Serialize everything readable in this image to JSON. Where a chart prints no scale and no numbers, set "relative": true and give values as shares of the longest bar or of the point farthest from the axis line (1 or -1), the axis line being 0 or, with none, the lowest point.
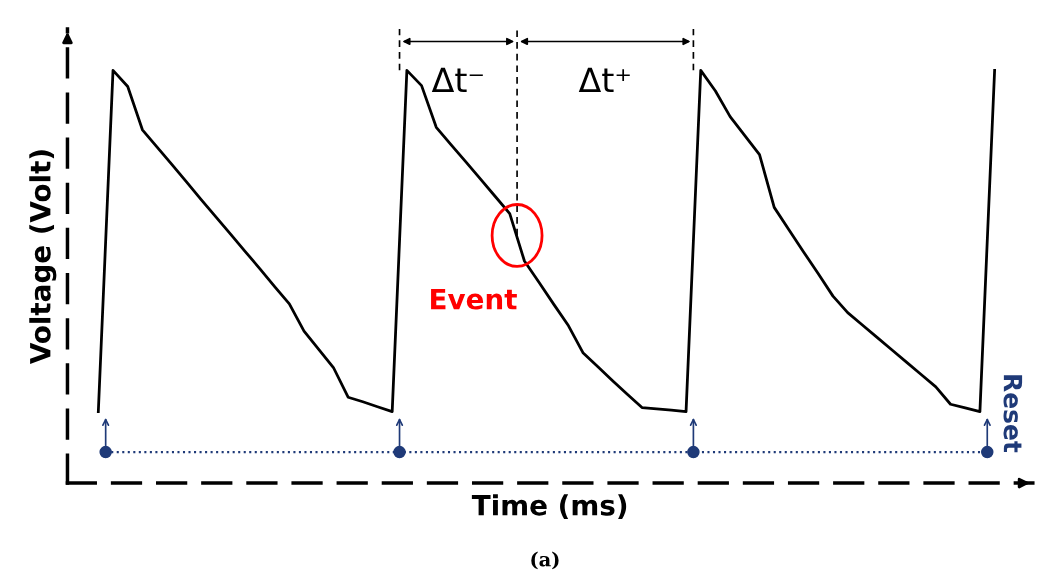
{
  "chart_data": {
    "type": "line",
    "relative": true,
    "xlabel": "Time (ms)",
    "ylabel": "Voltage (Volt)",
    "legend": false,
    "tick_labels": false,
    "categories": [
      null,
      null,
      null,
      null,
      null,
      null,
      null,
      null,
      null,
      null,
      null,
      null,
      null,
      null,
      null,
      null,
      null,
      null,
      null,
      null,
      null,
      null,
      null,
      null,
      null,
      null,
      null,
      null,
      null,
      null,
      null,
      null,
      null,
      null,
      null,
      null,
      null,
      null,
      null,
      null,
      null,
      null,
      null,
      null,
      null,
      null,
      null,
      null,
      null,
      null,
      null,
      null,
      null,
      null,
      null,
      null,
      null,
      null,
      null,
      null,
      null,
      null
    ],
    "series": [
      {
        "color": "#000000",
        "values": [
          0.173,
          1,
          0.961,
          0.856,
          0.814,
          0.772,
          0.73,
          0.687,
          0.645,
          0.603,
          0.561,
          0.519,
          0.476,
          0.434,
          0.368,
          0.324,
          0.28,
          0.208,
          0.197,
          0.185,
          0.173,
          1,
          0.963,
          0.862,
          0.82,
          0.779,
          0.737,
          0.695,
          0.653,
          0.538,
          0.486,
          0.433,
          0.381,
          0.315,
          0.282,
          0.248,
          0.215,
          0.183,
          0.18,
          0.177,
          0.173,
          1,
          0.95,
          0.888,
          0.842,
          0.796,
          0.668,
          0.614,
          0.56,
          0.507,
          0.453,
          0.413,
          0.383,
          0.353,
          0.323,
          0.293,
          0.263,
          0.233,
          0.191,
          0.182,
          0.173,
          1
        ]
      }
    ],
    "ref_lines": [
      {
        "axis": "y",
        "value": 0.075,
        "line_style": "dotted",
        "color": "#1f3a78"
      }
    ],
    "annotations": [
      "Δt⁻",
      "Δt⁺",
      "Event",
      "Reset",
      "(a)"
    ]
  }
}
